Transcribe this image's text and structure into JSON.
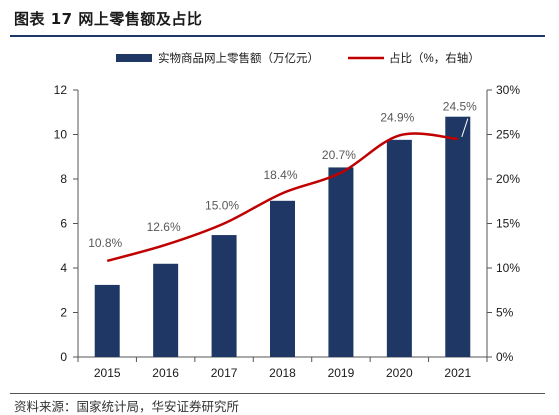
{
  "figure": {
    "title": "图表 17  网上零售额及占比",
    "source": "资料来源：国家统计局，华安证券研究所"
  },
  "colors": {
    "bar": "#1f3764",
    "line": "#c00000",
    "axis": "#555555",
    "label": "#595959"
  },
  "chart_data": {
    "type": "bar",
    "categories": [
      "2015",
      "2016",
      "2017",
      "2018",
      "2019",
      "2020",
      "2021"
    ],
    "series": [
      {
        "name": "实物商品网上零售额（万亿元）",
        "type": "bar",
        "axis": "left",
        "values": [
          3.24,
          4.19,
          5.48,
          7.02,
          8.52,
          9.76,
          10.8
        ]
      },
      {
        "name": "占比（%，右轴）",
        "type": "line",
        "axis": "right",
        "values": [
          10.8,
          12.6,
          15.0,
          18.4,
          20.7,
          24.9,
          24.5
        ],
        "labels": [
          "10.8%",
          "12.6%",
          "15.0%",
          "18.4%",
          "20.7%",
          "24.9%",
          "24.5%"
        ]
      }
    ],
    "left_axis": {
      "ylim": [
        0,
        12
      ],
      "ticks": [
        "0",
        "2",
        "4",
        "6",
        "8",
        "10",
        "12"
      ]
    },
    "right_axis": {
      "ylim": [
        0,
        30
      ],
      "ticks": [
        "0%",
        "5%",
        "10%",
        "15%",
        "20%",
        "25%",
        "30%"
      ]
    },
    "legend_position": "top-center",
    "grid": false
  }
}
